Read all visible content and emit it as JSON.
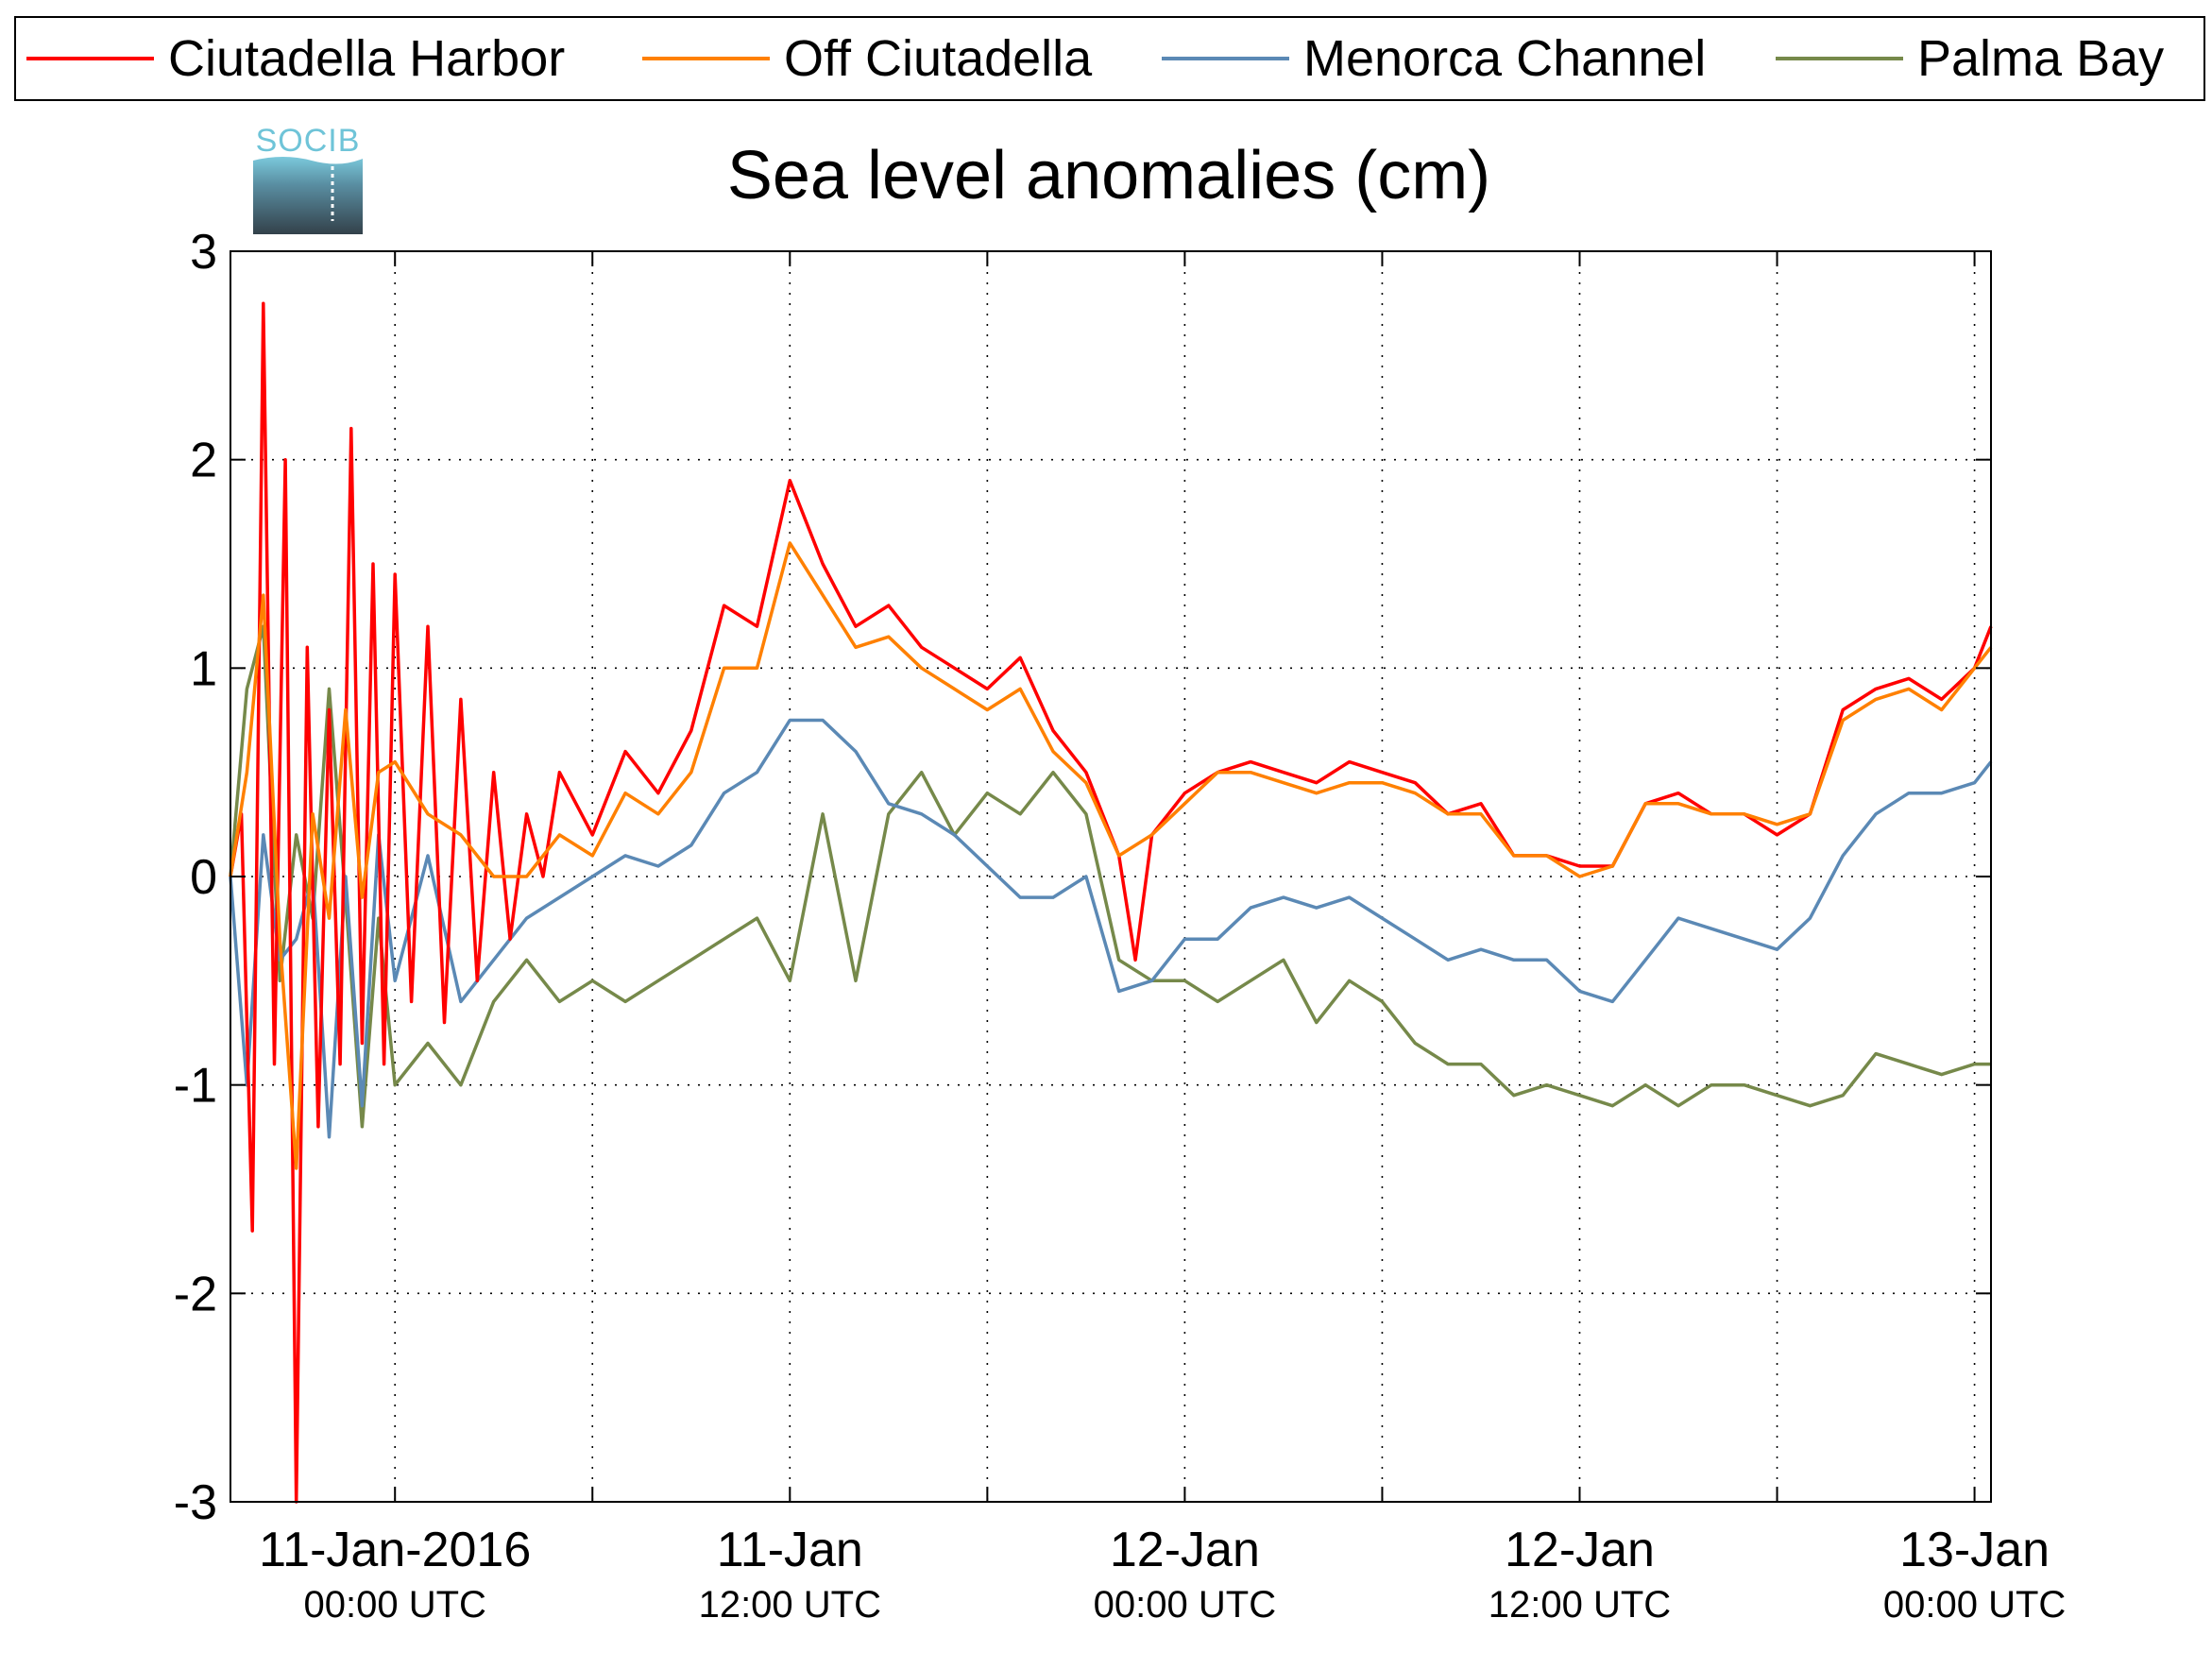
{
  "logo": {
    "text": "SOCIB"
  },
  "chart_data": {
    "type": "line",
    "title": "Sea level anomalies (cm)",
    "xlabel": "",
    "ylabel": "",
    "ylim": [
      -3,
      3
    ],
    "y_ticks": [
      -3,
      -2,
      -1,
      0,
      1,
      2,
      3
    ],
    "xlim": [
      "2016-01-10T19:00",
      "2016-01-13T00:30"
    ],
    "x_ticks": [
      {
        "t": "2016-01-11T00:00",
        "label": "11-Jan-2016",
        "sub": "00:00 UTC"
      },
      {
        "t": "2016-01-11T12:00",
        "label": "11-Jan",
        "sub": "12:00 UTC"
      },
      {
        "t": "2016-01-12T00:00",
        "label": "12-Jan",
        "sub": "00:00 UTC"
      },
      {
        "t": "2016-01-12T12:00",
        "label": "12-Jan",
        "sub": "12:00 UTC"
      },
      {
        "t": "2016-01-13T00:00",
        "label": "13-Jan",
        "sub": "00:00 UTC"
      }
    ],
    "grid": true,
    "legend_position": "top",
    "series": [
      {
        "name": "Ciutadella Harbor",
        "color": "#ff0000",
        "points": [
          [
            "2016-01-10T19:00",
            0.0
          ],
          [
            "2016-01-10T19:20",
            0.3
          ],
          [
            "2016-01-10T19:40",
            -1.7
          ],
          [
            "2016-01-10T20:00",
            2.75
          ],
          [
            "2016-01-10T20:20",
            -0.9
          ],
          [
            "2016-01-10T20:40",
            2.0
          ],
          [
            "2016-01-10T21:00",
            -3.0
          ],
          [
            "2016-01-10T21:20",
            1.1
          ],
          [
            "2016-01-10T21:40",
            -1.2
          ],
          [
            "2016-01-10T22:00",
            0.8
          ],
          [
            "2016-01-10T22:20",
            -0.9
          ],
          [
            "2016-01-10T22:40",
            2.15
          ],
          [
            "2016-01-10T23:00",
            -0.8
          ],
          [
            "2016-01-10T23:20",
            1.5
          ],
          [
            "2016-01-10T23:40",
            -0.9
          ],
          [
            "2016-01-11T00:00",
            1.45
          ],
          [
            "2016-01-11T00:30",
            -0.6
          ],
          [
            "2016-01-11T01:00",
            1.2
          ],
          [
            "2016-01-11T01:30",
            -0.7
          ],
          [
            "2016-01-11T02:00",
            0.85
          ],
          [
            "2016-01-11T02:30",
            -0.5
          ],
          [
            "2016-01-11T03:00",
            0.5
          ],
          [
            "2016-01-11T03:30",
            -0.3
          ],
          [
            "2016-01-11T04:00",
            0.3
          ],
          [
            "2016-01-11T04:30",
            0.0
          ],
          [
            "2016-01-11T05:00",
            0.5
          ],
          [
            "2016-01-11T06:00",
            0.2
          ],
          [
            "2016-01-11T07:00",
            0.6
          ],
          [
            "2016-01-11T08:00",
            0.4
          ],
          [
            "2016-01-11T09:00",
            0.7
          ],
          [
            "2016-01-11T10:00",
            1.3
          ],
          [
            "2016-01-11T11:00",
            1.2
          ],
          [
            "2016-01-11T12:00",
            1.9
          ],
          [
            "2016-01-11T13:00",
            1.5
          ],
          [
            "2016-01-11T14:00",
            1.2
          ],
          [
            "2016-01-11T15:00",
            1.3
          ],
          [
            "2016-01-11T16:00",
            1.1
          ],
          [
            "2016-01-11T17:00",
            1.0
          ],
          [
            "2016-01-11T18:00",
            0.9
          ],
          [
            "2016-01-11T19:00",
            1.05
          ],
          [
            "2016-01-11T20:00",
            0.7
          ],
          [
            "2016-01-11T21:00",
            0.5
          ],
          [
            "2016-01-11T22:00",
            0.1
          ],
          [
            "2016-01-11T22:30",
            -0.4
          ],
          [
            "2016-01-11T23:00",
            0.2
          ],
          [
            "2016-01-12T00:00",
            0.4
          ],
          [
            "2016-01-12T01:00",
            0.5
          ],
          [
            "2016-01-12T02:00",
            0.55
          ],
          [
            "2016-01-12T03:00",
            0.5
          ],
          [
            "2016-01-12T04:00",
            0.45
          ],
          [
            "2016-01-12T05:00",
            0.55
          ],
          [
            "2016-01-12T06:00",
            0.5
          ],
          [
            "2016-01-12T07:00",
            0.45
          ],
          [
            "2016-01-12T08:00",
            0.3
          ],
          [
            "2016-01-12T09:00",
            0.35
          ],
          [
            "2016-01-12T10:00",
            0.1
          ],
          [
            "2016-01-12T11:00",
            0.1
          ],
          [
            "2016-01-12T12:00",
            0.05
          ],
          [
            "2016-01-12T13:00",
            0.05
          ],
          [
            "2016-01-12T14:00",
            0.35
          ],
          [
            "2016-01-12T15:00",
            0.4
          ],
          [
            "2016-01-12T16:00",
            0.3
          ],
          [
            "2016-01-12T17:00",
            0.3
          ],
          [
            "2016-01-12T18:00",
            0.2
          ],
          [
            "2016-01-12T19:00",
            0.3
          ],
          [
            "2016-01-12T20:00",
            0.8
          ],
          [
            "2016-01-12T21:00",
            0.9
          ],
          [
            "2016-01-12T22:00",
            0.95
          ],
          [
            "2016-01-12T23:00",
            0.85
          ],
          [
            "2016-01-13T00:00",
            1.0
          ],
          [
            "2016-01-13T00:30",
            1.2
          ]
        ]
      },
      {
        "name": "Off Ciutadella",
        "color": "#ff8000",
        "points": [
          [
            "2016-01-10T19:00",
            0.0
          ],
          [
            "2016-01-10T19:30",
            0.5
          ],
          [
            "2016-01-10T20:00",
            1.35
          ],
          [
            "2016-01-10T20:30",
            -0.3
          ],
          [
            "2016-01-10T21:00",
            -1.4
          ],
          [
            "2016-01-10T21:30",
            0.3
          ],
          [
            "2016-01-10T22:00",
            -0.2
          ],
          [
            "2016-01-10T22:30",
            0.8
          ],
          [
            "2016-01-10T23:00",
            -0.1
          ],
          [
            "2016-01-10T23:30",
            0.5
          ],
          [
            "2016-01-11T00:00",
            0.55
          ],
          [
            "2016-01-11T01:00",
            0.3
          ],
          [
            "2016-01-11T02:00",
            0.2
          ],
          [
            "2016-01-11T03:00",
            0.0
          ],
          [
            "2016-01-11T04:00",
            0.0
          ],
          [
            "2016-01-11T05:00",
            0.2
          ],
          [
            "2016-01-11T06:00",
            0.1
          ],
          [
            "2016-01-11T07:00",
            0.4
          ],
          [
            "2016-01-11T08:00",
            0.3
          ],
          [
            "2016-01-11T09:00",
            0.5
          ],
          [
            "2016-01-11T10:00",
            1.0
          ],
          [
            "2016-01-11T11:00",
            1.0
          ],
          [
            "2016-01-11T12:00",
            1.6
          ],
          [
            "2016-01-11T13:00",
            1.35
          ],
          [
            "2016-01-11T14:00",
            1.1
          ],
          [
            "2016-01-11T15:00",
            1.15
          ],
          [
            "2016-01-11T16:00",
            1.0
          ],
          [
            "2016-01-11T17:00",
            0.9
          ],
          [
            "2016-01-11T18:00",
            0.8
          ],
          [
            "2016-01-11T19:00",
            0.9
          ],
          [
            "2016-01-11T20:00",
            0.6
          ],
          [
            "2016-01-11T21:00",
            0.45
          ],
          [
            "2016-01-11T22:00",
            0.1
          ],
          [
            "2016-01-11T23:00",
            0.2
          ],
          [
            "2016-01-12T00:00",
            0.35
          ],
          [
            "2016-01-12T01:00",
            0.5
          ],
          [
            "2016-01-12T02:00",
            0.5
          ],
          [
            "2016-01-12T03:00",
            0.45
          ],
          [
            "2016-01-12T04:00",
            0.4
          ],
          [
            "2016-01-12T05:00",
            0.45
          ],
          [
            "2016-01-12T06:00",
            0.45
          ],
          [
            "2016-01-12T07:00",
            0.4
          ],
          [
            "2016-01-12T08:00",
            0.3
          ],
          [
            "2016-01-12T09:00",
            0.3
          ],
          [
            "2016-01-12T10:00",
            0.1
          ],
          [
            "2016-01-12T11:00",
            0.1
          ],
          [
            "2016-01-12T12:00",
            0.0
          ],
          [
            "2016-01-12T13:00",
            0.05
          ],
          [
            "2016-01-12T14:00",
            0.35
          ],
          [
            "2016-01-12T15:00",
            0.35
          ],
          [
            "2016-01-12T16:00",
            0.3
          ],
          [
            "2016-01-12T17:00",
            0.3
          ],
          [
            "2016-01-12T18:00",
            0.25
          ],
          [
            "2016-01-12T19:00",
            0.3
          ],
          [
            "2016-01-12T20:00",
            0.75
          ],
          [
            "2016-01-12T21:00",
            0.85
          ],
          [
            "2016-01-12T22:00",
            0.9
          ],
          [
            "2016-01-12T23:00",
            0.8
          ],
          [
            "2016-01-13T00:00",
            1.0
          ],
          [
            "2016-01-13T00:30",
            1.1
          ]
        ]
      },
      {
        "name": "Menorca Channel",
        "color": "#5b89b5",
        "points": [
          [
            "2016-01-10T19:00",
            0.0
          ],
          [
            "2016-01-10T19:30",
            -1.0
          ],
          [
            "2016-01-10T20:00",
            0.2
          ],
          [
            "2016-01-10T20:30",
            -0.4
          ],
          [
            "2016-01-10T21:00",
            -0.3
          ],
          [
            "2016-01-10T21:30",
            0.0
          ],
          [
            "2016-01-10T22:00",
            -1.25
          ],
          [
            "2016-01-10T22:30",
            0.0
          ],
          [
            "2016-01-10T23:00",
            -1.1
          ],
          [
            "2016-01-10T23:30",
            0.2
          ],
          [
            "2016-01-11T00:00",
            -0.5
          ],
          [
            "2016-01-11T01:00",
            0.1
          ],
          [
            "2016-01-11T02:00",
            -0.6
          ],
          [
            "2016-01-11T03:00",
            -0.4
          ],
          [
            "2016-01-11T04:00",
            -0.2
          ],
          [
            "2016-01-11T05:00",
            -0.1
          ],
          [
            "2016-01-11T06:00",
            0.0
          ],
          [
            "2016-01-11T07:00",
            0.1
          ],
          [
            "2016-01-11T08:00",
            0.05
          ],
          [
            "2016-01-11T09:00",
            0.15
          ],
          [
            "2016-01-11T10:00",
            0.4
          ],
          [
            "2016-01-11T11:00",
            0.5
          ],
          [
            "2016-01-11T12:00",
            0.75
          ],
          [
            "2016-01-11T13:00",
            0.75
          ],
          [
            "2016-01-11T14:00",
            0.6
          ],
          [
            "2016-01-11T15:00",
            0.35
          ],
          [
            "2016-01-11T16:00",
            0.3
          ],
          [
            "2016-01-11T17:00",
            0.2
          ],
          [
            "2016-01-11T18:00",
            0.05
          ],
          [
            "2016-01-11T19:00",
            -0.1
          ],
          [
            "2016-01-11T20:00",
            -0.1
          ],
          [
            "2016-01-11T21:00",
            0.0
          ],
          [
            "2016-01-11T22:00",
            -0.55
          ],
          [
            "2016-01-11T23:00",
            -0.5
          ],
          [
            "2016-01-12T00:00",
            -0.3
          ],
          [
            "2016-01-12T01:00",
            -0.3
          ],
          [
            "2016-01-12T02:00",
            -0.15
          ],
          [
            "2016-01-12T03:00",
            -0.1
          ],
          [
            "2016-01-12T04:00",
            -0.15
          ],
          [
            "2016-01-12T05:00",
            -0.1
          ],
          [
            "2016-01-12T06:00",
            -0.2
          ],
          [
            "2016-01-12T07:00",
            -0.3
          ],
          [
            "2016-01-12T08:00",
            -0.4
          ],
          [
            "2016-01-12T09:00",
            -0.35
          ],
          [
            "2016-01-12T10:00",
            -0.4
          ],
          [
            "2016-01-12T11:00",
            -0.4
          ],
          [
            "2016-01-12T12:00",
            -0.55
          ],
          [
            "2016-01-12T13:00",
            -0.6
          ],
          [
            "2016-01-12T14:00",
            -0.4
          ],
          [
            "2016-01-12T15:00",
            -0.2
          ],
          [
            "2016-01-12T16:00",
            -0.25
          ],
          [
            "2016-01-12T17:00",
            -0.3
          ],
          [
            "2016-01-12T18:00",
            -0.35
          ],
          [
            "2016-01-12T19:00",
            -0.2
          ],
          [
            "2016-01-12T20:00",
            0.1
          ],
          [
            "2016-01-12T21:00",
            0.3
          ],
          [
            "2016-01-12T22:00",
            0.4
          ],
          [
            "2016-01-12T23:00",
            0.4
          ],
          [
            "2016-01-13T00:00",
            0.45
          ],
          [
            "2016-01-13T00:30",
            0.55
          ]
        ]
      },
      {
        "name": "Palma Bay",
        "color": "#76894a",
        "points": [
          [
            "2016-01-10T19:00",
            0.0
          ],
          [
            "2016-01-10T19:30",
            0.9
          ],
          [
            "2016-01-10T20:00",
            1.2
          ],
          [
            "2016-01-10T20:30",
            -0.5
          ],
          [
            "2016-01-10T21:00",
            0.2
          ],
          [
            "2016-01-10T21:30",
            -0.2
          ],
          [
            "2016-01-10T22:00",
            0.9
          ],
          [
            "2016-01-10T22:30",
            -0.1
          ],
          [
            "2016-01-10T23:00",
            -1.2
          ],
          [
            "2016-01-10T23:30",
            -0.2
          ],
          [
            "2016-01-11T00:00",
            -1.0
          ],
          [
            "2016-01-11T01:00",
            -0.8
          ],
          [
            "2016-01-11T02:00",
            -1.0
          ],
          [
            "2016-01-11T03:00",
            -0.6
          ],
          [
            "2016-01-11T04:00",
            -0.4
          ],
          [
            "2016-01-11T05:00",
            -0.6
          ],
          [
            "2016-01-11T06:00",
            -0.5
          ],
          [
            "2016-01-11T07:00",
            -0.6
          ],
          [
            "2016-01-11T08:00",
            -0.5
          ],
          [
            "2016-01-11T09:00",
            -0.4
          ],
          [
            "2016-01-11T10:00",
            -0.3
          ],
          [
            "2016-01-11T11:00",
            -0.2
          ],
          [
            "2016-01-11T12:00",
            -0.5
          ],
          [
            "2016-01-11T13:00",
            0.3
          ],
          [
            "2016-01-11T14:00",
            -0.5
          ],
          [
            "2016-01-11T15:00",
            0.3
          ],
          [
            "2016-01-11T16:00",
            0.5
          ],
          [
            "2016-01-11T17:00",
            0.2
          ],
          [
            "2016-01-11T18:00",
            0.4
          ],
          [
            "2016-01-11T19:00",
            0.3
          ],
          [
            "2016-01-11T20:00",
            0.5
          ],
          [
            "2016-01-11T21:00",
            0.3
          ],
          [
            "2016-01-11T22:00",
            -0.4
          ],
          [
            "2016-01-11T23:00",
            -0.5
          ],
          [
            "2016-01-12T00:00",
            -0.5
          ],
          [
            "2016-01-12T01:00",
            -0.6
          ],
          [
            "2016-01-12T02:00",
            -0.5
          ],
          [
            "2016-01-12T03:00",
            -0.4
          ],
          [
            "2016-01-12T04:00",
            -0.7
          ],
          [
            "2016-01-12T05:00",
            -0.5
          ],
          [
            "2016-01-12T06:00",
            -0.6
          ],
          [
            "2016-01-12T07:00",
            -0.8
          ],
          [
            "2016-01-12T08:00",
            -0.9
          ],
          [
            "2016-01-12T09:00",
            -0.9
          ],
          [
            "2016-01-12T10:00",
            -1.05
          ],
          [
            "2016-01-12T11:00",
            -1.0
          ],
          [
            "2016-01-12T12:00",
            -1.05
          ],
          [
            "2016-01-12T13:00",
            -1.1
          ],
          [
            "2016-01-12T14:00",
            -1.0
          ],
          [
            "2016-01-12T15:00",
            -1.1
          ],
          [
            "2016-01-12T16:00",
            -1.0
          ],
          [
            "2016-01-12T17:00",
            -1.0
          ],
          [
            "2016-01-12T18:00",
            -1.05
          ],
          [
            "2016-01-12T19:00",
            -1.1
          ],
          [
            "2016-01-12T20:00",
            -1.05
          ],
          [
            "2016-01-12T21:00",
            -0.85
          ],
          [
            "2016-01-12T22:00",
            -0.9
          ],
          [
            "2016-01-12T23:00",
            -0.95
          ],
          [
            "2016-01-13T00:00",
            -0.9
          ],
          [
            "2016-01-13T00:30",
            -0.9
          ]
        ]
      }
    ]
  }
}
